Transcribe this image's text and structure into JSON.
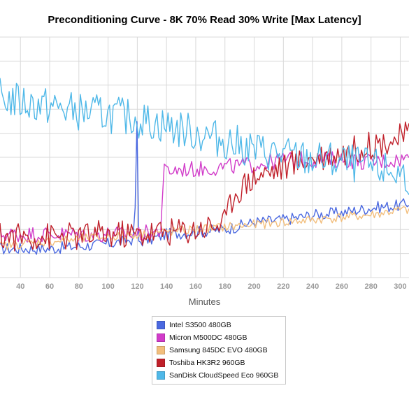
{
  "chart_data": {
    "type": "line",
    "title": "Preconditioning Curve - 8K 70% Read 30% Write [Max Latency]",
    "xlabel": "Minutes",
    "ylabel": "",
    "xlim": [
      26,
      306
    ],
    "ylim": [
      0,
      10
    ],
    "x_ticks": [
      40,
      60,
      80,
      100,
      120,
      140,
      160,
      180,
      200,
      220,
      240,
      260,
      280,
      300
    ],
    "grid": true,
    "legend_position": "bottom",
    "series": [
      {
        "name": "Intel S3500 480GB",
        "color": "#4a68e0",
        "points": [
          [
            26,
            1.2
          ],
          [
            40,
            1.2
          ],
          [
            60,
            1.2
          ],
          [
            80,
            1.3
          ],
          [
            100,
            1.4
          ],
          [
            110,
            1.5
          ],
          [
            118,
            1.6
          ],
          [
            120,
            7.0
          ],
          [
            121,
            1.5
          ],
          [
            130,
            1.6
          ],
          [
            140,
            1.8
          ],
          [
            160,
            1.9
          ],
          [
            180,
            2.0
          ],
          [
            200,
            2.3
          ],
          [
            220,
            2.4
          ],
          [
            240,
            2.6
          ],
          [
            260,
            2.7
          ],
          [
            280,
            2.9
          ],
          [
            300,
            3.0
          ],
          [
            306,
            3.1
          ]
        ]
      },
      {
        "name": "Micron M500DC 480GB",
        "color": "#d13bc9",
        "points": [
          [
            26,
            1.8
          ],
          [
            40,
            1.8
          ],
          [
            60,
            1.8
          ],
          [
            80,
            1.8
          ],
          [
            100,
            1.8
          ],
          [
            120,
            1.8
          ],
          [
            134,
            1.9
          ],
          [
            136,
            2.0
          ],
          [
            138,
            4.4
          ],
          [
            150,
            4.5
          ],
          [
            160,
            4.5
          ],
          [
            180,
            4.6
          ],
          [
            200,
            4.7
          ],
          [
            220,
            4.9
          ],
          [
            240,
            4.9
          ],
          [
            260,
            4.9
          ],
          [
            280,
            4.8
          ],
          [
            300,
            4.9
          ],
          [
            306,
            5.0
          ]
        ]
      },
      {
        "name": "Samsung 845DC EVO 480GB",
        "color": "#f2be7c",
        "points": [
          [
            26,
            1.3
          ],
          [
            40,
            1.4
          ],
          [
            60,
            1.5
          ],
          [
            80,
            1.6
          ],
          [
            100,
            1.7
          ],
          [
            120,
            1.8
          ],
          [
            140,
            1.9
          ],
          [
            160,
            2.0
          ],
          [
            180,
            2.1
          ],
          [
            200,
            2.2
          ],
          [
            220,
            2.3
          ],
          [
            240,
            2.4
          ],
          [
            260,
            2.5
          ],
          [
            280,
            2.6
          ],
          [
            300,
            2.8
          ],
          [
            306,
            2.8
          ]
        ]
      },
      {
        "name": "Toshiba HK3R2 960GB",
        "color": "#c0202a",
        "points": [
          [
            26,
            1.7
          ],
          [
            40,
            1.7
          ],
          [
            60,
            1.7
          ],
          [
            80,
            1.7
          ],
          [
            100,
            1.8
          ],
          [
            120,
            1.8
          ],
          [
            140,
            1.9
          ],
          [
            160,
            2.0
          ],
          [
            180,
            2.3
          ],
          [
            186,
            3.5
          ],
          [
            200,
            4.2
          ],
          [
            220,
            4.6
          ],
          [
            240,
            5.0
          ],
          [
            260,
            5.2
          ],
          [
            280,
            5.5
          ],
          [
            300,
            5.8
          ],
          [
            306,
            6.0
          ]
        ]
      },
      {
        "name": "SanDisk CloudSpeed Eco 960GB",
        "color": "#4fb8e8",
        "points": [
          [
            26,
            7.5
          ],
          [
            40,
            7.3
          ],
          [
            60,
            7.1
          ],
          [
            80,
            6.9
          ],
          [
            100,
            6.8
          ],
          [
            120,
            6.6
          ],
          [
            140,
            6.3
          ],
          [
            160,
            6.0
          ],
          [
            180,
            5.7
          ],
          [
            200,
            5.3
          ],
          [
            220,
            5.1
          ],
          [
            240,
            4.9
          ],
          [
            260,
            4.8
          ],
          [
            280,
            4.6
          ],
          [
            300,
            4.3
          ],
          [
            306,
            4.2
          ]
        ]
      }
    ]
  }
}
